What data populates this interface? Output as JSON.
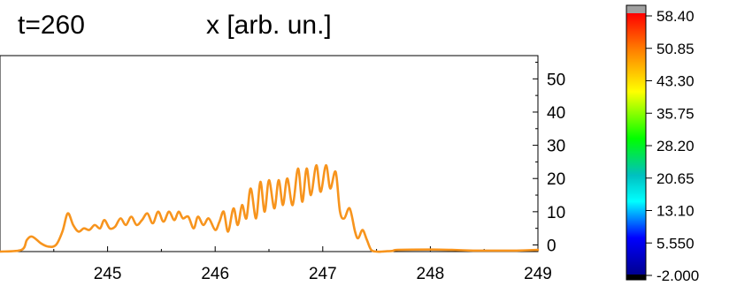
{
  "header": {
    "time_label": "t=260",
    "axis_title": "x [arb. un.]"
  },
  "chart_data": {
    "type": "line",
    "x_ticks": [
      "245",
      "246",
      "247",
      "248",
      "249"
    ],
    "y_ticks": [
      "0",
      "10",
      "20",
      "30",
      "40",
      "50"
    ],
    "xlim": [
      244.0,
      249.0
    ],
    "ylim": [
      -2,
      57
    ],
    "grid": false,
    "series_color": "#f7941d",
    "x": [
      244.0,
      244.2,
      244.25,
      244.3,
      244.38,
      244.45,
      244.52,
      244.58,
      244.63,
      244.68,
      244.73,
      244.78,
      244.83,
      244.88,
      244.93,
      244.97,
      245.02,
      245.07,
      245.12,
      245.17,
      245.22,
      245.27,
      245.32,
      245.37,
      245.42,
      245.47,
      245.52,
      245.57,
      245.62,
      245.66,
      245.7,
      245.75,
      245.8,
      245.84,
      245.89,
      245.94,
      246.0,
      246.04,
      246.08,
      246.12,
      246.17,
      246.21,
      246.25,
      246.29,
      246.33,
      246.38,
      246.42,
      246.46,
      246.5,
      246.55,
      246.59,
      246.63,
      246.67,
      246.72,
      246.77,
      246.81,
      246.85,
      246.89,
      246.94,
      246.98,
      247.03,
      247.07,
      247.12,
      247.16,
      247.2,
      247.25,
      247.3,
      247.33,
      247.37,
      247.41,
      247.45,
      247.5,
      247.55,
      247.6,
      247.65,
      247.7,
      248.0,
      248.2,
      248.4,
      248.6,
      248.8,
      249.0
    ],
    "y": [
      -2,
      -1.5,
      1.5,
      2.5,
      0.5,
      -0.5,
      0,
      4,
      9.5,
      6,
      4,
      5,
      4.5,
      6,
      5,
      7.5,
      5,
      5.5,
      8,
      6,
      8.5,
      6,
      7.5,
      9.5,
      6.5,
      10,
      7,
      10,
      7.5,
      10,
      8,
      8.5,
      5,
      8.5,
      6,
      8,
      4.5,
      7,
      10,
      4,
      11,
      6,
      12,
      8,
      17,
      8,
      19,
      10,
      19.5,
      11,
      19.5,
      12,
      20,
      12,
      23,
      13,
      23,
      15,
      24,
      16,
      24,
      17,
      22,
      10,
      8,
      11,
      4,
      2,
      4.5,
      1.5,
      -1.5,
      -2,
      -2,
      -1.9,
      -1.8,
      -1.5,
      -1.4,
      -1.5,
      -1.7,
      -1.7,
      -1.7,
      -1.5
    ]
  },
  "colorbar": {
    "labels": [
      "58.40",
      "50.85",
      "43.30",
      "35.75",
      "28.20",
      "20.65",
      "13.10",
      "5.550",
      "-2.000"
    ],
    "top_color": "#a0a0a0",
    "gradient": [
      "#ff0000",
      "#ff7f00",
      "#ffff00",
      "#00ff00",
      "#00c0c0",
      "#00ffff",
      "#0000ff",
      "#000090"
    ],
    "bottom_color": "#000000"
  }
}
